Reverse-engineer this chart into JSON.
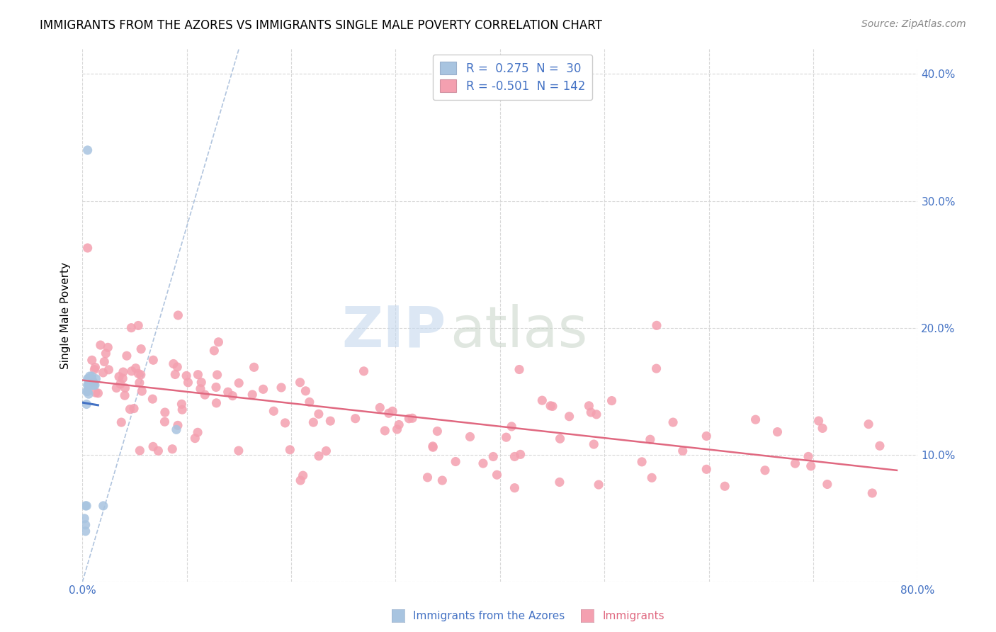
{
  "title": "IMMIGRANTS FROM THE AZORES VS IMMIGRANTS SINGLE MALE POVERTY CORRELATION CHART",
  "source": "Source: ZipAtlas.com",
  "ylabel": "Single Male Poverty",
  "xlim": [
    0.0,
    0.8
  ],
  "ylim": [
    0.0,
    0.42
  ],
  "xtick_positions": [
    0.0,
    0.1,
    0.2,
    0.3,
    0.4,
    0.5,
    0.6,
    0.7,
    0.8
  ],
  "xticklabels": [
    "0.0%",
    "",
    "",
    "",
    "",
    "",
    "",
    "",
    "80.0%"
  ],
  "ytick_positions": [
    0.0,
    0.1,
    0.2,
    0.3,
    0.4
  ],
  "yticklabels": [
    "",
    "10.0%",
    "20.0%",
    "30.0%",
    "40.0%"
  ],
  "legend_r1": "0.275",
  "legend_n1": "30",
  "legend_r2": "-0.501",
  "legend_n2": "142",
  "color_blue": "#a8c4e0",
  "color_pink": "#f4a0b0",
  "line_blue": "#4472c4",
  "line_pink": "#e06880",
  "diag_color": "#b0c4de",
  "tick_color": "#4472c4",
  "grid_color": "#d8d8d8",
  "title_fontsize": 12,
  "source_fontsize": 10,
  "legend_fontsize": 12,
  "ylabel_fontsize": 11,
  "tick_fontsize": 11,
  "dot_size": 90
}
